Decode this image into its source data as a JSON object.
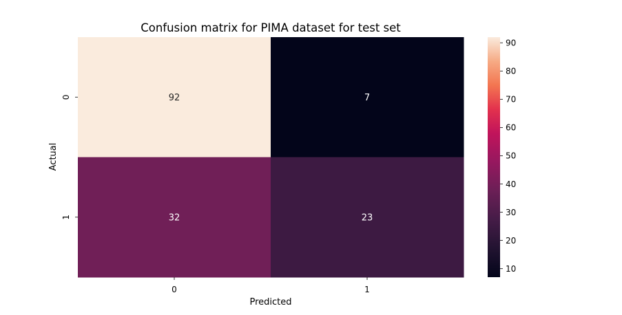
{
  "chart_data": {
    "type": "heatmap",
    "title": "Confusion matrix for PIMA dataset for test set",
    "xlabel": "Predicted",
    "ylabel": "Actual",
    "x_categories": [
      "0",
      "1"
    ],
    "y_categories": [
      "0",
      "1"
    ],
    "values": [
      [
        92,
        7
      ],
      [
        32,
        23
      ]
    ],
    "colormap": "rocket",
    "colorbar": {
      "range": [
        7,
        92
      ],
      "ticks": [
        10,
        20,
        30,
        40,
        50,
        60,
        70,
        80,
        90
      ],
      "tick_labels": [
        "10",
        "20",
        "30",
        "40",
        "50",
        "60",
        "70",
        "80",
        "90"
      ]
    },
    "cell_colors": [
      [
        "#faebdd",
        "#03051a"
      ],
      [
        "#701f57",
        "#3d1a42"
      ]
    ],
    "cell_text_colors": [
      [
        "#262626",
        "#ffffff"
      ],
      [
        "#ffffff",
        "#ffffff"
      ]
    ]
  }
}
